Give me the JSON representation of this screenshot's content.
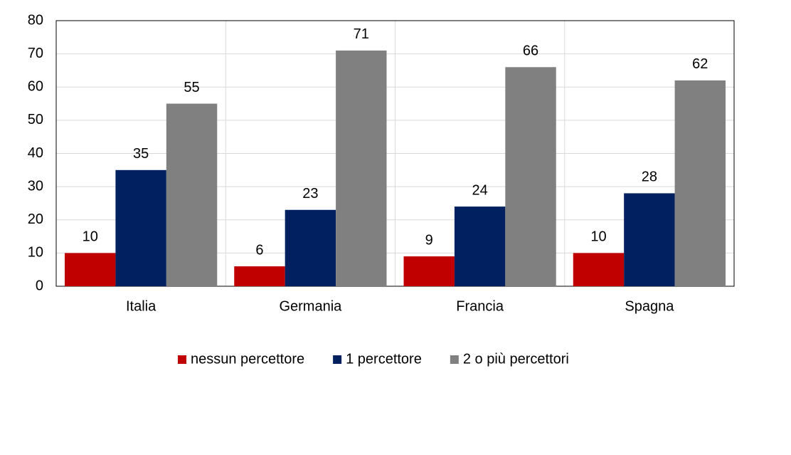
{
  "chart_data": {
    "type": "bar",
    "categories": [
      "Italia",
      "Germania",
      "Francia",
      "Spagna"
    ],
    "series": [
      {
        "name": "nessun percettore",
        "color": "#c00000",
        "values": [
          10,
          6,
          9,
          10
        ]
      },
      {
        "name": "1 percettore",
        "color": "#002060",
        "values": [
          35,
          23,
          24,
          28
        ]
      },
      {
        "name": "2 o più percettori",
        "color": "#808080",
        "values": [
          55,
          71,
          66,
          62
        ]
      }
    ],
    "ylim": [
      0,
      80
    ],
    "yticks": [
      0,
      10,
      20,
      30,
      40,
      50,
      60,
      70,
      80
    ],
    "grid": true,
    "legend": "bottom"
  }
}
